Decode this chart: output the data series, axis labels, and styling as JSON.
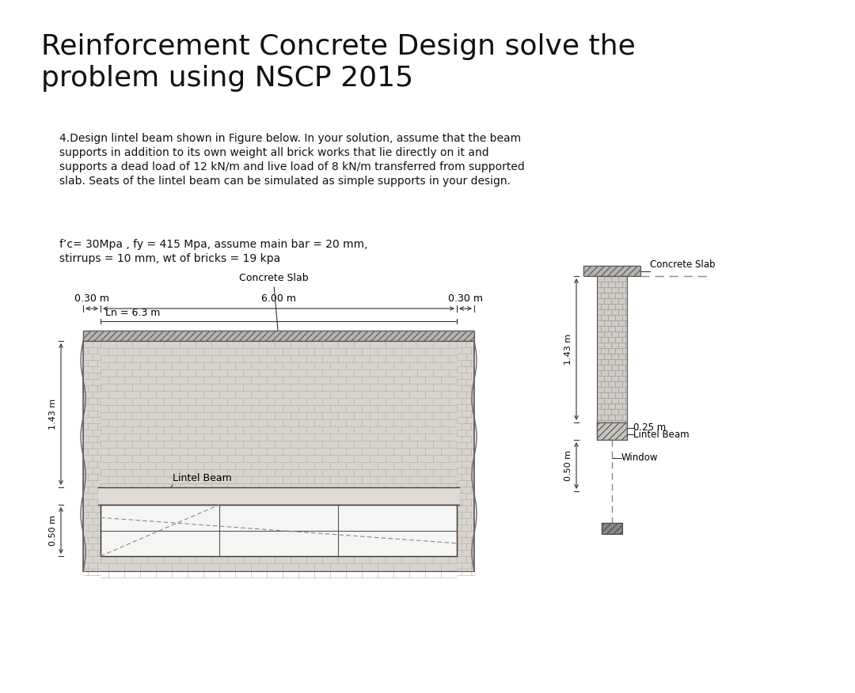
{
  "title_line1": "Reinforcement Concrete Design solve the",
  "title_line2": "problem using NSCP 2015",
  "title_fontsize": 26,
  "problem_text_line1": "4.Design lintel beam shown in Figure below. In your solution, assume that the beam",
  "problem_text_line2": "supports in addition to its own weight all brick works that lie directly on it and",
  "problem_text_line3": "supports a dead load of 12 kN/m and live load of 8 kN/m transferred from supported",
  "problem_text_line4": "slab. Seats of the lintel beam can be simulated as simple supports in your design.",
  "params_line1": "f’c= 30Mpa , fy = 415 Mpa, assume main bar = 20 mm,",
  "params_line2": "stirrups = 10 mm, wt of bricks = 19 kpa",
  "bg_color": "#ffffff",
  "text_color": "#111111",
  "brick_color": "#d8d3cd",
  "slab_fill": "#b8b4b0",
  "beam_fill": "#e0dbd5",
  "window_fill": "#f5f5f3"
}
